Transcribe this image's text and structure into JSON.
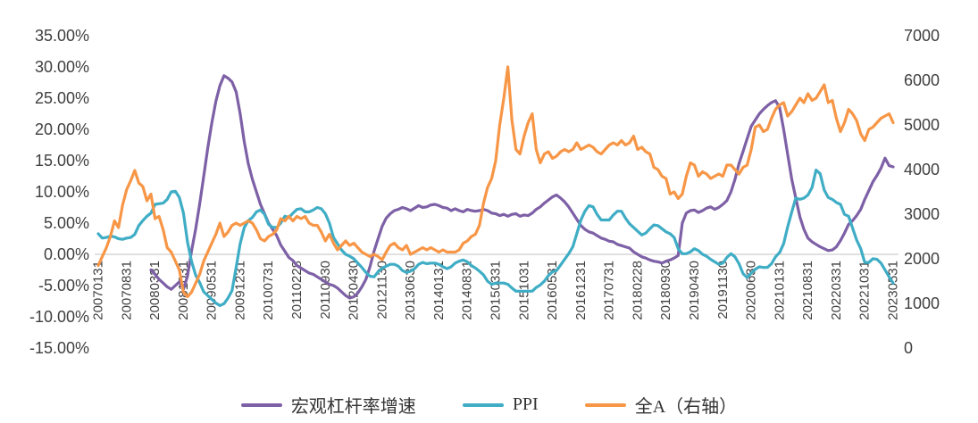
{
  "chart_data": {
    "type": "line",
    "title": "",
    "legend_position": "bottom",
    "grid": "zero-line-only",
    "plot_bg": "#ffffff",
    "axis_text_color": "#3f3f3f",
    "zero_line_color": "#d6d6d6",
    "start_month": "2007-01",
    "x_tick_interval_months": 7,
    "x_tick_labels": [
      "20070131",
      "20070831",
      "20080331",
      "20081031",
      "20090531",
      "20091231",
      "20100731",
      "20110228",
      "20110930",
      "20120430",
      "20121130",
      "20130630",
      "20140131",
      "20140831",
      "20150331",
      "20151031",
      "20160531",
      "20161231",
      "20170731",
      "20180228",
      "20180930",
      "20190430",
      "20191130",
      "20200630",
      "20210131",
      "20210831",
      "20220331",
      "20221031",
      "20230531"
    ],
    "left_axis": {
      "min": -15,
      "max": 35,
      "format": "percent",
      "ticks": [
        "35.00%",
        "30.00%",
        "25.00%",
        "20.00%",
        "15.00%",
        "10.00%",
        "5.00%",
        "0.00%",
        "-5.00%",
        "-10.00%",
        "-15.00%"
      ]
    },
    "right_axis": {
      "min": 0,
      "max": 7000,
      "ticks": [
        "7000",
        "6000",
        "5000",
        "4000",
        "3000",
        "2000",
        "1000",
        "0"
      ]
    },
    "series": [
      {
        "name": "宏观杠杆率增速",
        "slug": "macro-leverage-growth",
        "axis": "left",
        "color": "#7D60A6",
        "values": [
          null,
          null,
          null,
          null,
          null,
          null,
          null,
          null,
          null,
          null,
          null,
          null,
          null,
          -2.5,
          -3.2,
          -4.0,
          -4.6,
          -5.2,
          -5.6,
          -5.0,
          -4.4,
          -5.6,
          -3.5,
          0.5,
          4.0,
          8.0,
          12.5,
          17.0,
          21.0,
          24.5,
          27.0,
          28.6,
          28.2,
          27.6,
          26.0,
          22.5,
          18.0,
          14.5,
          12.0,
          10.0,
          8.0,
          6.5,
          5.0,
          4.0,
          3.0,
          1.5,
          0.5,
          -0.5,
          -1.0,
          -1.8,
          -2.2,
          -2.6,
          -3.0,
          -3.2,
          -3.6,
          -4.0,
          -4.4,
          -4.8,
          -5.0,
          -5.4,
          -6.0,
          -6.6,
          -7.0,
          -6.8,
          -6.2,
          -5.2,
          -4.0,
          -2.0,
          0.5,
          2.5,
          4.5,
          5.8,
          6.5,
          7.0,
          7.2,
          7.5,
          7.3,
          7.0,
          7.4,
          7.8,
          7.5,
          7.6,
          7.9,
          8.0,
          7.8,
          7.5,
          7.4,
          7.0,
          7.3,
          7.0,
          6.8,
          7.2,
          7.0,
          6.9,
          7.0,
          7.2,
          7.0,
          6.6,
          6.5,
          6.2,
          6.4,
          6.1,
          6.4,
          6.5,
          6.1,
          6.3,
          6.2,
          6.6,
          7.2,
          7.6,
          8.2,
          8.7,
          9.2,
          9.5,
          9.0,
          8.4,
          7.6,
          6.6,
          5.6,
          4.6,
          4.0,
          3.6,
          3.4,
          3.0,
          2.6,
          2.4,
          2.1,
          2.0,
          1.6,
          1.4,
          1.2,
          1.0,
          0.4,
          0.0,
          -0.4,
          -0.6,
          -0.9,
          -1.1,
          -1.2,
          -1.4,
          -1.1,
          -0.9,
          -0.6,
          -0.2,
          5.0,
          6.6,
          7.0,
          7.1,
          6.7,
          7.0,
          7.4,
          7.6,
          7.2,
          7.5,
          8.0,
          8.6,
          10.0,
          12.0,
          14.5,
          16.5,
          18.5,
          20.5,
          21.5,
          22.5,
          23.2,
          23.8,
          24.3,
          24.6,
          23.5,
          20.0,
          16.0,
          12.0,
          9.0,
          6.0,
          4.0,
          2.6,
          2.0,
          1.6,
          1.2,
          0.9,
          0.6,
          0.7,
          1.2,
          2.2,
          3.4,
          4.8,
          5.4,
          6.2,
          7.2,
          8.8,
          10.2,
          11.6,
          12.6,
          13.8,
          15.4,
          14.2,
          14.0
        ]
      },
      {
        "name": "PPI",
        "slug": "ppi",
        "axis": "left",
        "color": "#3FADC5",
        "values": [
          3.3,
          2.6,
          2.7,
          2.9,
          2.8,
          2.5,
          2.4,
          2.6,
          2.7,
          3.2,
          4.6,
          5.4,
          6.1,
          6.6,
          8.0,
          8.1,
          8.2,
          8.8,
          10.0,
          10.1,
          9.1,
          6.6,
          2.0,
          -1.1,
          -3.3,
          -4.5,
          -6.0,
          -6.6,
          -7.2,
          -7.8,
          -8.2,
          -7.9,
          -7.0,
          -5.8,
          -2.1,
          1.7,
          4.3,
          5.4,
          5.9,
          6.8,
          7.1,
          6.4,
          4.8,
          4.3,
          4.3,
          5.0,
          6.1,
          5.9,
          6.6,
          7.2,
          7.3,
          6.8,
          6.8,
          7.1,
          7.5,
          7.3,
          6.5,
          5.0,
          2.7,
          1.7,
          0.7,
          0.0,
          -0.3,
          -0.7,
          -1.4,
          -2.1,
          -2.9,
          -3.5,
          -3.6,
          -2.8,
          -2.2,
          -1.9,
          -1.6,
          -1.6,
          -1.9,
          -2.6,
          -2.9,
          -2.7,
          -2.3,
          -1.6,
          -1.3,
          -1.5,
          -1.4,
          -1.4,
          -1.6,
          -2.0,
          -2.3,
          -2.0,
          -1.4,
          -1.1,
          -0.9,
          -1.2,
          -1.8,
          -2.2,
          -2.7,
          -3.3,
          -4.3,
          -4.8,
          -4.6,
          -4.6,
          -4.6,
          -4.8,
          -5.4,
          -5.9,
          -5.9,
          -5.9,
          -5.9,
          -5.9,
          -5.3,
          -4.9,
          -4.3,
          -3.4,
          -2.8,
          -2.6,
          -1.7,
          -0.8,
          0.1,
          1.2,
          3.3,
          5.5,
          6.9,
          7.8,
          7.6,
          6.4,
          5.5,
          5.5,
          5.5,
          6.3,
          6.9,
          6.9,
          5.8,
          4.9,
          4.3,
          3.7,
          3.1,
          3.4,
          4.1,
          4.7,
          4.6,
          4.1,
          3.6,
          3.3,
          2.7,
          0.9,
          0.1,
          0.1,
          0.4,
          0.9,
          0.6,
          0.0,
          -0.3,
          -0.8,
          -1.2,
          -1.6,
          -1.4,
          -0.5,
          0.1,
          -0.4,
          -1.5,
          -3.1,
          -3.7,
          -3.0,
          -2.4,
          -2.0,
          -2.1,
          -2.1,
          -1.5,
          -0.4,
          0.3,
          1.7,
          4.4,
          6.8,
          9.0,
          8.8,
          9.0,
          9.5,
          10.7,
          13.5,
          12.9,
          10.3,
          9.1,
          8.8,
          8.3,
          8.0,
          6.4,
          6.1,
          4.2,
          2.3,
          0.9,
          -1.3,
          -1.3,
          -0.7,
          -0.8,
          -1.4,
          -2.5,
          -3.6,
          -4.6
        ]
      },
      {
        "name": "全A（右轴）",
        "slug": "all-a-right-axis",
        "axis": "right",
        "color": "#F79646",
        "values": [
          1850,
          2050,
          2250,
          2500,
          2850,
          2700,
          3200,
          3550,
          3750,
          3980,
          3700,
          3620,
          3300,
          3450,
          2900,
          2950,
          2650,
          2250,
          2150,
          1950,
          1750,
          1250,
          1150,
          1250,
          1450,
          1650,
          1950,
          2150,
          2350,
          2550,
          2800,
          2500,
          2600,
          2750,
          2800,
          2750,
          2800,
          2850,
          2800,
          2650,
          2450,
          2400,
          2500,
          2550,
          2650,
          2900,
          2850,
          2950,
          2850,
          2950,
          2900,
          2950,
          2800,
          2750,
          2750,
          2600,
          2400,
          2550,
          2350,
          2200,
          2300,
          2400,
          2300,
          2350,
          2250,
          2150,
          2100,
          2050,
          2100,
          2050,
          1980,
          2150,
          2300,
          2350,
          2250,
          2200,
          2300,
          2100,
          2150,
          2200,
          2250,
          2200,
          2250,
          2200,
          2150,
          2200,
          2150,
          2150,
          2150,
          2200,
          2350,
          2400,
          2500,
          2550,
          2750,
          3250,
          3600,
          3800,
          4200,
          5000,
          5600,
          6300,
          5100,
          4450,
          4350,
          4750,
          5050,
          5250,
          4450,
          4150,
          4350,
          4400,
          4250,
          4300,
          4400,
          4450,
          4400,
          4450,
          4600,
          4450,
          4500,
          4550,
          4500,
          4400,
          4350,
          4450,
          4550,
          4600,
          4550,
          4650,
          4550,
          4600,
          4750,
          4450,
          4500,
          4400,
          4350,
          4050,
          4000,
          3850,
          3800,
          3450,
          3500,
          3350,
          3450,
          3850,
          4150,
          4100,
          3850,
          3950,
          3900,
          3800,
          3850,
          3900,
          3850,
          4100,
          4100,
          4000,
          3900,
          4050,
          4100,
          4450,
          4950,
          5000,
          4850,
          4900,
          5150,
          5350,
          5450,
          5500,
          5200,
          5300,
          5450,
          5600,
          5500,
          5700,
          5550,
          5600,
          5750,
          5900,
          5500,
          5550,
          5150,
          4850,
          5050,
          5350,
          5250,
          5100,
          4800,
          4650,
          4900,
          4950,
          5050,
          5150,
          5200,
          5250,
          5050
        ]
      }
    ]
  }
}
